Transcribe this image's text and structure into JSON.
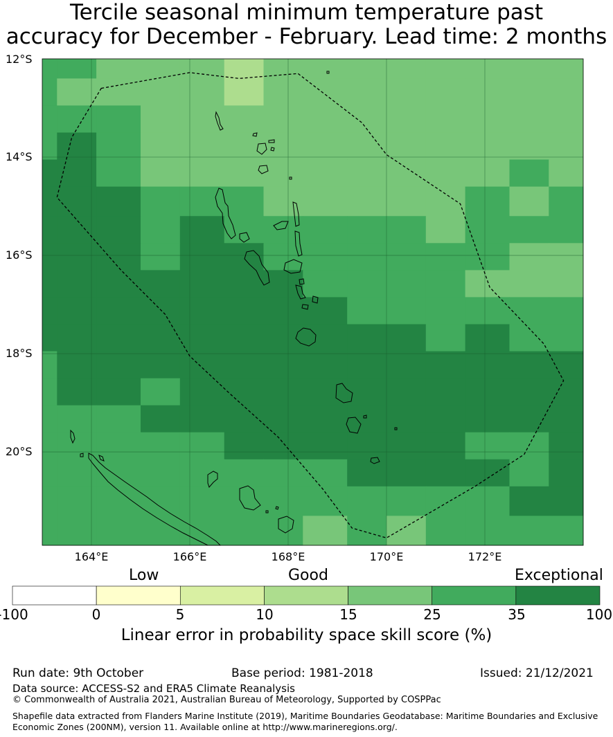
{
  "title_line1": "Tercile seasonal minimum temperature past",
  "title_line2": "accuracy for December - February. Lead time: 2 months",
  "lat_labels": [
    "12°S",
    "14°S",
    "16°S",
    "18°S",
    "20°S"
  ],
  "lon_labels": [
    "164°E",
    "166°E",
    "168°E",
    "170°E",
    "172°E"
  ],
  "colorbar": {
    "low": "Low",
    "good": "Good",
    "exceptional": "Exceptional",
    "ticks": [
      "-100",
      "0",
      "5",
      "10",
      "15",
      "25",
      "35",
      "100"
    ],
    "colors": [
      "#ffffff",
      "#ffffcc",
      "#d9f0a3",
      "#addd8e",
      "#78c679",
      "#41ab5d",
      "#238443"
    ],
    "label": "Linear error in probability space skill score (%)"
  },
  "footer": {
    "run_date": "Run date: 9th October",
    "base_period": "Base period: 1981-2018",
    "issued": "Issued: 21/12/2021",
    "data_source": "Data source: ACCESS-S2 and ERA5 Climate Reanalysis",
    "copyright": "© Commonwealth of Australia 2021, Australian Bureau of Meteorology, Supported by COSPPac",
    "shapefile_line1": "Shapefile data extracted from Flanders Marine Institute (2019), Maritime Boundaries Geodatabase: Maritime Boundaries and Exclusive",
    "shapefile_line2": "Economic Zones (200NM), version 11. Available online at http://www.marineregions.org/."
  },
  "map_data": {
    "lon_range": [
      163,
      174
    ],
    "lat_range": [
      -21.9,
      -12
    ],
    "grid_cols": [
      163.0,
      163.3,
      164.1,
      165.0,
      165.8,
      166.7,
      167.5,
      168.3,
      169.2,
      170.0,
      170.8,
      171.6,
      172.5,
      173.3,
      174.0
    ],
    "grid_rows": [
      -12.0,
      -12.4,
      -12.95,
      -13.5,
      -14.05,
      -14.6,
      -15.2,
      -15.75,
      -16.3,
      -16.85,
      -17.4,
      -17.95,
      -18.5,
      -19.05,
      -19.6,
      -20.15,
      -20.7,
      -21.3,
      -21.9
    ],
    "classes": [
      [
        5,
        5,
        4,
        4,
        4,
        3,
        4,
        4,
        4,
        4,
        4,
        4,
        4,
        4
      ],
      [
        5,
        4,
        4,
        4,
        4,
        3,
        4,
        4,
        4,
        4,
        4,
        4,
        4,
        4
      ],
      [
        5,
        5,
        5,
        4,
        4,
        4,
        4,
        4,
        4,
        4,
        4,
        4,
        4,
        4
      ],
      [
        5,
        6,
        5,
        4,
        4,
        4,
        4,
        4,
        4,
        4,
        4,
        4,
        4,
        4
      ],
      [
        6,
        6,
        5,
        4,
        4,
        4,
        4,
        4,
        4,
        4,
        4,
        4,
        5,
        4
      ],
      [
        6,
        6,
        6,
        5,
        5,
        5,
        4,
        4,
        4,
        4,
        4,
        5,
        4,
        5
      ],
      [
        6,
        6,
        6,
        5,
        6,
        5,
        5,
        5,
        5,
        5,
        4,
        5,
        5,
        5
      ],
      [
        6,
        6,
        6,
        5,
        6,
        6,
        5,
        5,
        5,
        5,
        5,
        5,
        4,
        4
      ],
      [
        6,
        6,
        6,
        6,
        6,
        6,
        6,
        5,
        5,
        5,
        5,
        4,
        4,
        4
      ],
      [
        6,
        6,
        6,
        6,
        6,
        6,
        6,
        6,
        5,
        5,
        5,
        5,
        5,
        5
      ],
      [
        6,
        6,
        6,
        6,
        6,
        6,
        6,
        6,
        6,
        6,
        5,
        6,
        5,
        5
      ],
      [
        5,
        6,
        6,
        6,
        6,
        6,
        6,
        6,
        6,
        6,
        6,
        6,
        6,
        6
      ],
      [
        5,
        6,
        6,
        5,
        6,
        6,
        6,
        6,
        6,
        6,
        6,
        6,
        6,
        6
      ],
      [
        5,
        5,
        5,
        6,
        6,
        6,
        6,
        6,
        6,
        6,
        6,
        6,
        6,
        6
      ],
      [
        5,
        5,
        5,
        5,
        5,
        6,
        6,
        6,
        6,
        6,
        6,
        5,
        5,
        6
      ],
      [
        5,
        5,
        5,
        5,
        5,
        5,
        5,
        5,
        6,
        6,
        6,
        6,
        5,
        6
      ],
      [
        5,
        5,
        5,
        5,
        5,
        5,
        5,
        5,
        5,
        5,
        5,
        5,
        6,
        6
      ],
      [
        5,
        5,
        5,
        5,
        5,
        5,
        5,
        4,
        5,
        4,
        5,
        5,
        5,
        5
      ]
    ],
    "eez_boundary": [
      [
        164.2,
        -12.6
      ],
      [
        166.0,
        -12.28
      ],
      [
        167.0,
        -12.4
      ],
      [
        168.2,
        -12.3
      ],
      [
        169.5,
        -13.3
      ],
      [
        170.0,
        -13.95
      ],
      [
        171.5,
        -14.95
      ],
      [
        172.1,
        -16.65
      ],
      [
        173.2,
        -17.8
      ],
      [
        173.6,
        -18.55
      ],
      [
        172.8,
        -20.05
      ],
      [
        171.8,
        -20.7
      ],
      [
        170.0,
        -21.75
      ],
      [
        169.3,
        -21.55
      ],
      [
        168.7,
        -20.75
      ],
      [
        167.8,
        -19.7
      ],
      [
        166.8,
        -18.8
      ],
      [
        166.0,
        -18.05
      ],
      [
        165.5,
        -17.2
      ],
      [
        164.6,
        -16.3
      ],
      [
        163.3,
        -14.82
      ],
      [
        163.6,
        -13.6
      ]
    ]
  }
}
